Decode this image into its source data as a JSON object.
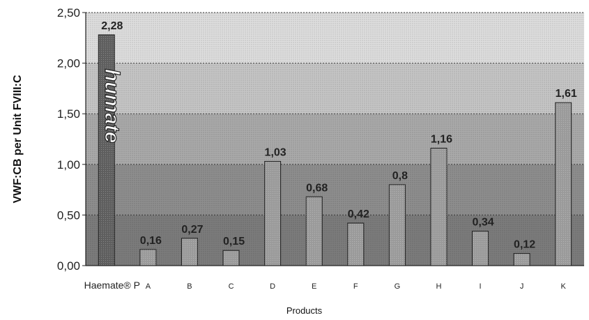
{
  "chart_data": {
    "type": "bar",
    "title": "",
    "ylabel": "VWF:CB per Unit FVIII:C",
    "xlabel": "Products",
    "ylim": [
      0,
      2.5
    ],
    "yticks": [
      "0,00",
      "0,50",
      "1,00",
      "1,50",
      "2,00",
      "2,50"
    ],
    "categories": [
      "Haemate® P",
      "A",
      "B",
      "C",
      "D",
      "E",
      "F",
      "G",
      "H",
      "I",
      "J",
      "K"
    ],
    "values": [
      2.28,
      0.16,
      0.27,
      0.15,
      1.03,
      0.68,
      0.42,
      0.8,
      1.16,
      0.34,
      0.12,
      1.61
    ],
    "data_labels": [
      "2,28",
      "0,16",
      "0,27",
      "0,15",
      "1,03",
      "0,68",
      "0,42",
      "0,8",
      "1,16",
      "0,34",
      "0,12",
      "1,61"
    ],
    "annotation": "humate",
    "grid": true,
    "background_bands": [
      {
        "from": 0,
        "to": 0.5,
        "color": "#7c7c7c"
      },
      {
        "from": 0.5,
        "to": 1.0,
        "color": "#8e8e8e"
      },
      {
        "from": 1.0,
        "to": 1.5,
        "color": "#aaaaaa"
      },
      {
        "from": 1.5,
        "to": 2.0,
        "color": "#c6c6c6"
      },
      {
        "from": 2.0,
        "to": 2.5,
        "color": "#dedede"
      }
    ],
    "bar_color": "#9a9a9a",
    "first_bar_color": "#5e5e5e"
  }
}
